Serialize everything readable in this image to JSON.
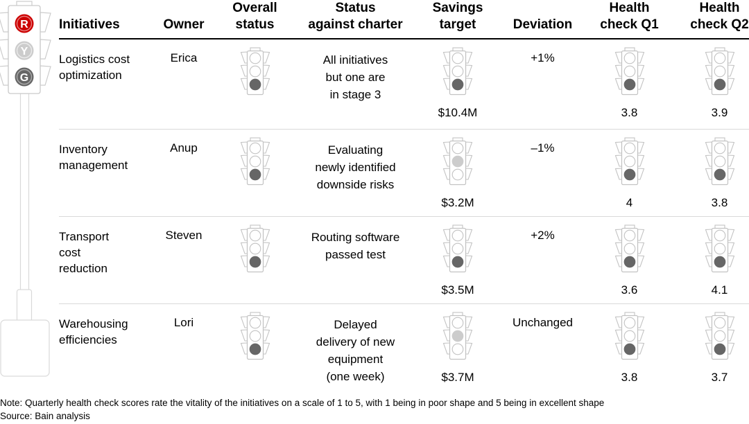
{
  "legend_light": {
    "red_label": "R",
    "yellow_label": "Y",
    "green_label": "G"
  },
  "colors": {
    "red": "#cc0000",
    "dark_fill": "#666666",
    "light_fill": "#cccccc",
    "outline": "#c2c2c2",
    "pole_outline": "#d9d9d9",
    "separator": "#d9d9d9"
  },
  "table": {
    "columns": [
      "Initiatives",
      "Owner",
      "Overall\nstatus",
      "Status\nagainst charter",
      "Savings\ntarget",
      "Deviation",
      "Health\ncheck Q1",
      "Health\ncheck Q2"
    ],
    "rows": [
      {
        "initiative": "Logistics cost\noptimization",
        "owner": "Erica",
        "overall_status": "green",
        "charter": "All initiatives\nbut one are\nin stage 3",
        "savings_status": "green",
        "savings_target": "$10.4M",
        "deviation": "+1%",
        "q1_status": "green",
        "q1_score": "3.8",
        "q2_status": "green",
        "q2_score": "3.9"
      },
      {
        "initiative": "Inventory\nmanagement",
        "owner": "Anup",
        "overall_status": "green",
        "charter": "Evaluating\nnewly identified\ndownside risks",
        "savings_status": "yellow",
        "savings_target": "$3.2M",
        "deviation": "–1%",
        "q1_status": "green",
        "q1_score": "4",
        "q2_status": "green",
        "q2_score": "3.8"
      },
      {
        "initiative": "Transport\ncost\nreduction",
        "owner": "Steven",
        "overall_status": "green",
        "charter": "Routing software\npassed test",
        "savings_status": "green",
        "savings_target": "$3.5M",
        "deviation": "+2%",
        "q1_status": "green",
        "q1_score": "3.6",
        "q2_status": "green",
        "q2_score": "4.1"
      },
      {
        "initiative": "Warehousing\nefficiencies",
        "owner": "Lori",
        "overall_status": "green",
        "charter": "Delayed\ndelivery of new\nequipment\n(one week)",
        "savings_status": "yellow",
        "savings_target": "$3.7M",
        "deviation": "Unchanged",
        "q1_status": "green",
        "q1_score": "3.8",
        "q2_status": "green",
        "q2_score": "3.7"
      }
    ]
  },
  "footer": {
    "note": "Note: Quarterly health check scores rate the vitality of the initiatives on a scale of 1 to 5, with 1 being in poor shape and 5 being in excellent shape",
    "source": "Source: Bain analysis"
  }
}
